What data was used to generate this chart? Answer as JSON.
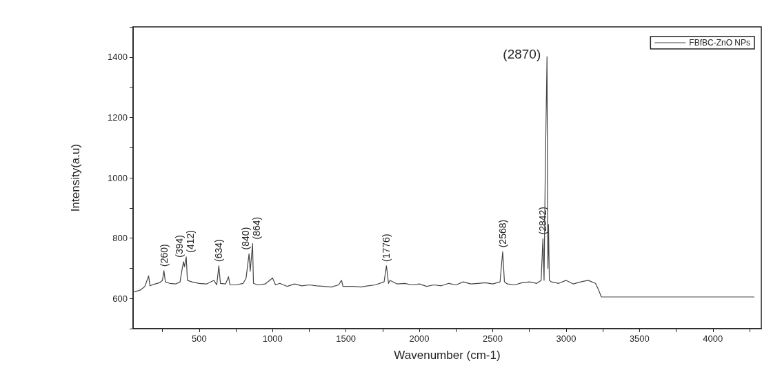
{
  "chart_data": {
    "type": "line",
    "xlabel": "Wavenumber (cm-1)",
    "ylabel": "Intensity(a.u)",
    "xlim": [
      50,
      4330
    ],
    "ylim": [
      500,
      1500
    ],
    "xticks": [
      {
        "value": 250,
        "label": null
      },
      500,
      {
        "value": 750,
        "label": null
      },
      1000,
      {
        "value": 1250,
        "label": null
      },
      1500,
      {
        "value": 1750,
        "label": null
      },
      2000,
      {
        "value": 2250,
        "label": null
      },
      2500,
      {
        "value": 2750,
        "label": null
      },
      3000,
      {
        "value": 3250,
        "label": null
      },
      3500,
      {
        "value": 3750,
        "label": null
      },
      4000,
      {
        "value": 4250,
        "label": null
      }
    ],
    "yticks": [
      {
        "value": 500,
        "label": null
      },
      600,
      {
        "value": 700,
        "label": null
      },
      800,
      {
        "value": 900,
        "label": null
      },
      1000,
      {
        "value": 1100,
        "label": null
      },
      1200,
      {
        "value": 1300,
        "label": null
      },
      1400,
      {
        "value": 1500,
        "label": null
      }
    ],
    "grid": false,
    "legend": "top right",
    "marker": "none",
    "line_style": "solid",
    "series": [
      {
        "name": "FBfBC-ZnO NPs",
        "color": "#444444",
        "x": [
          60,
          100,
          130,
          156,
          165,
          200,
          230,
          250,
          260,
          270,
          300,
          340,
          370,
          385,
          394,
          400,
          412,
          420,
          450,
          500,
          550,
          600,
          620,
          634,
          645,
          680,
          700,
          710,
          750,
          800,
          820,
          840,
          848,
          864,
          870,
          900,
          950,
          1000,
          1020,
          1050,
          1100,
          1150,
          1200,
          1250,
          1300,
          1350,
          1400,
          1450,
          1470,
          1480,
          1550,
          1600,
          1650,
          1700,
          1760,
          1776,
          1790,
          1800,
          1850,
          1900,
          1950,
          2000,
          2050,
          2100,
          2150,
          2200,
          2250,
          2300,
          2350,
          2400,
          2450,
          2500,
          2550,
          2568,
          2580,
          2600,
          2650,
          2700,
          2750,
          2800,
          2830,
          2842,
          2850,
          2858,
          2870,
          2876,
          2880,
          2886,
          2900,
          2950,
          3000,
          3050,
          3100,
          3150,
          3200,
          3220,
          3240,
          3500,
          4280
        ],
        "values": [
          622,
          628,
          640,
          675,
          642,
          648,
          652,
          660,
          692,
          655,
          650,
          648,
          655,
          700,
          722,
          705,
          738,
          660,
          655,
          650,
          648,
          660,
          645,
          708,
          650,
          648,
          672,
          645,
          645,
          650,
          668,
          748,
          690,
          782,
          650,
          645,
          648,
          668,
          645,
          650,
          640,
          648,
          642,
          645,
          642,
          640,
          638,
          645,
          660,
          640,
          640,
          638,
          642,
          645,
          655,
          708,
          650,
          660,
          648,
          650,
          645,
          648,
          640,
          645,
          642,
          650,
          645,
          655,
          648,
          650,
          652,
          648,
          655,
          755,
          655,
          648,
          645,
          652,
          655,
          650,
          660,
          798,
          660,
          1015,
          1401,
          700,
          845,
          660,
          655,
          650,
          660,
          648,
          655,
          660,
          650,
          630,
          605,
          605,
          605
        ]
      }
    ],
    "annotations": [
      {
        "text": "(260)",
        "x": 260,
        "y": 692
      },
      {
        "text": "(394)",
        "x": 394,
        "y": 722
      },
      {
        "text": "(412)",
        "x": 412,
        "y": 738
      },
      {
        "text": "(634)",
        "x": 634,
        "y": 708
      },
      {
        "text": "(840)",
        "x": 840,
        "y": 748
      },
      {
        "text": "(864)",
        "x": 864,
        "y": 782
      },
      {
        "text": "(1776)",
        "x": 1776,
        "y": 708
      },
      {
        "text": "(2568)",
        "x": 2568,
        "y": 755
      },
      {
        "text": "(2842)",
        "x": 2842,
        "y": 798
      },
      {
        "text": "(2870)",
        "x": 2870,
        "y": 1401
      }
    ]
  }
}
